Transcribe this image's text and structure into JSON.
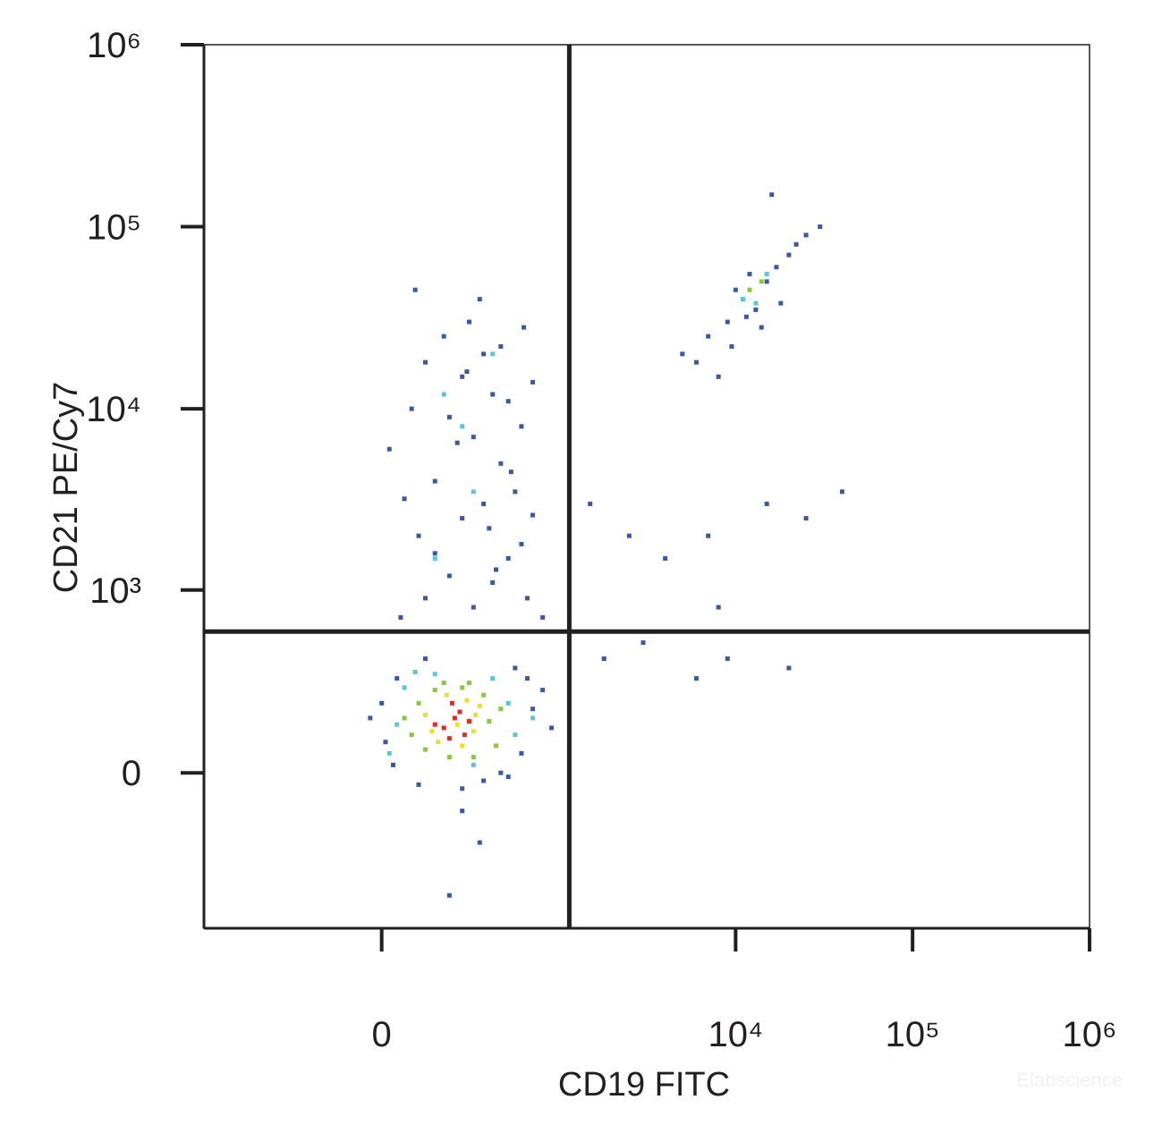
{
  "chart_data": {
    "type": "scatter",
    "x_label": "CD19 FITC",
    "y_label": "CD21 PE/Cy7",
    "watermark": "Elabscience",
    "xscale": "asinh",
    "yscale": "asinh",
    "xlim": [
      -1000,
      1000000
    ],
    "ylim": [
      -700,
      1000000
    ],
    "xticks": [
      0,
      {
        "value": 10000,
        "label": "10⁴"
      },
      {
        "value": 100000,
        "label": "10⁵"
      },
      {
        "value": 1000000,
        "label": "10⁶"
      }
    ],
    "yticks": [
      0,
      {
        "value": 1000,
        "label": "10³"
      },
      {
        "value": 10000,
        "label": "10⁴"
      },
      {
        "value": 100000,
        "label": "10⁵"
      },
      {
        "value": 1000000,
        "label": "10⁶"
      }
    ],
    "gates": {
      "x": 1140,
      "y": 580
    },
    "series": [
      {
        "color": "#3b57a6",
        "x": [
          10,
          0,
          -30,
          600,
          700,
          800,
          650,
          30,
          450,
          500,
          550,
          350,
          100,
          250,
          900,
          40,
          120,
          250,
          330,
          200,
          50,
          120,
          200,
          300,
          400,
          500,
          650,
          800,
          100,
          250,
          350,
          600,
          700,
          150,
          450,
          550,
          20,
          300,
          200,
          80,
          400,
          600,
          250,
          350,
          500,
          180,
          280,
          700,
          120,
          330,
          450,
          230,
          520,
          60,
          380,
          150,
          420,
          270,
          620,
          90,
          5000,
          7000,
          9000,
          11000,
          13000,
          15000,
          17000,
          20000,
          25000,
          8000,
          10000,
          12000,
          14000,
          18000,
          22000,
          6000,
          30000,
          9500,
          16000,
          11500,
          1500,
          2500,
          4000,
          7000,
          8000,
          15000,
          25000,
          40000,
          3000,
          9000,
          20000,
          1800,
          6000
        ],
        "y": [
          80,
          200,
          150,
          50,
          180,
          250,
          300,
          20,
          0,
          -10,
          350,
          -20,
          -30,
          -40,
          120,
          300,
          400,
          -100,
          -200,
          -450,
          700,
          900,
          1200,
          800,
          1100,
          1500,
          900,
          700,
          2000,
          2500,
          3000,
          1800,
          2600,
          4000,
          5000,
          3500,
          6000,
          7000,
          9000,
          10000,
          12000,
          8000,
          15000,
          20000,
          11000,
          25000,
          30000,
          14000,
          18000,
          40000,
          22000,
          6500,
          4500,
          3200,
          2200,
          1600,
          1300,
          16000,
          28000,
          45000,
          20000,
          25000,
          30000,
          40000,
          35000,
          50000,
          60000,
          70000,
          90000,
          15000,
          45000,
          55000,
          28000,
          38000,
          80000,
          18000,
          100000,
          22000,
          150000,
          32000,
          3000,
          2000,
          1500,
          2000,
          800,
          3000,
          2500,
          3500,
          500,
          400,
          350,
          400,
          300
        ]
      },
      {
        "color": "#5cc6d6",
        "x": [
          40,
          500,
          60,
          550,
          400,
          20,
          300,
          150,
          700,
          90,
          150,
          300,
          250,
          400,
          180,
          11000,
          13000,
          15000
        ],
        "y": [
          130,
          200,
          260,
          100,
          300,
          50,
          20,
          320,
          150,
          330,
          1500,
          3500,
          8000,
          20000,
          12000,
          40000,
          38000,
          55000
        ]
      },
      {
        "color": "#8cc63f",
        "x": [
          80,
          380,
          100,
          420,
          350,
          60,
          300,
          200,
          150,
          250,
          450,
          280,
          120,
          180,
          12000,
          14000
        ],
        "y": [
          100,
          140,
          200,
          70,
          230,
          150,
          40,
          40,
          250,
          260,
          180,
          280,
          60,
          280,
          45000,
          50000
        ]
      },
      {
        "color": "#f0e014",
        "x": [
          120,
          300,
          160,
          330,
          250,
          190,
          140,
          270,
          230,
          310
        ],
        "y": [
          160,
          110,
          80,
          190,
          70,
          230,
          110,
          210,
          130,
          160
        ]
      },
      {
        "color": "#e8281e",
        "x": [
          180,
          220,
          260,
          200,
          240,
          150,
          280,
          210
        ],
        "y": [
          120,
          150,
          100,
          90,
          170,
          130,
          140,
          200
        ]
      }
    ]
  }
}
